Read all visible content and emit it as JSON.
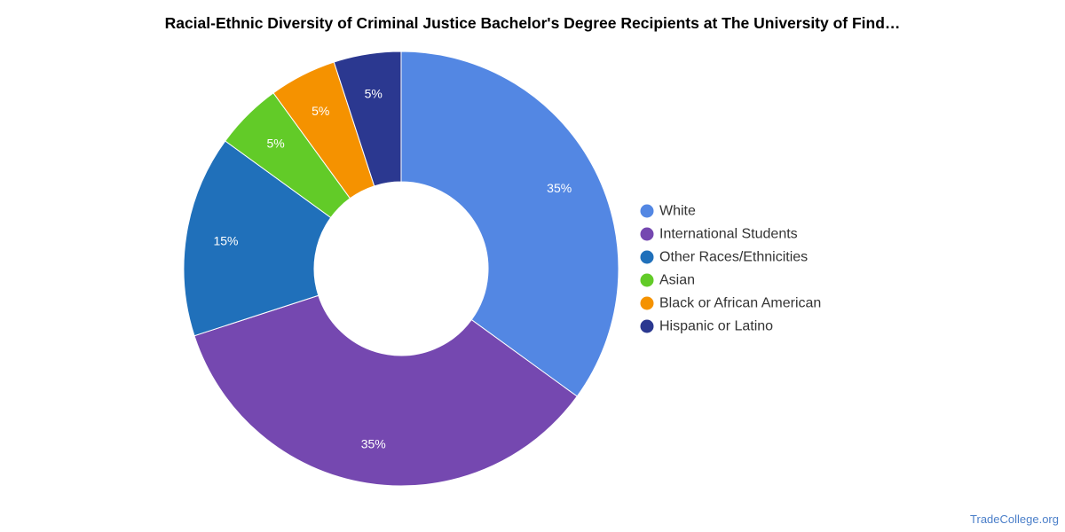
{
  "chart_data": {
    "type": "pie",
    "title": "Racial-Ethnic Diversity of Criminal Justice Bachelor's Degree Recipients at The University of Find…",
    "donut": true,
    "legend_position": "right",
    "series": [
      {
        "name": "White",
        "value": 35,
        "label": "35%",
        "color": "#5387e3"
      },
      {
        "name": "International Students",
        "value": 35,
        "label": "35%",
        "color": "#7548b0"
      },
      {
        "name": "Other Races/Ethnicities",
        "value": 15,
        "label": "15%",
        "color": "#2070ba"
      },
      {
        "name": "Asian",
        "value": 5,
        "label": "5%",
        "color": "#62cb28"
      },
      {
        "name": "Black or African American",
        "value": 5,
        "label": "5%",
        "color": "#f59200"
      },
      {
        "name": "Hispanic or Latino",
        "value": 5,
        "label": "5%",
        "color": "#2b3890"
      }
    ]
  },
  "footer": {
    "source": "TradeCollege.org"
  }
}
